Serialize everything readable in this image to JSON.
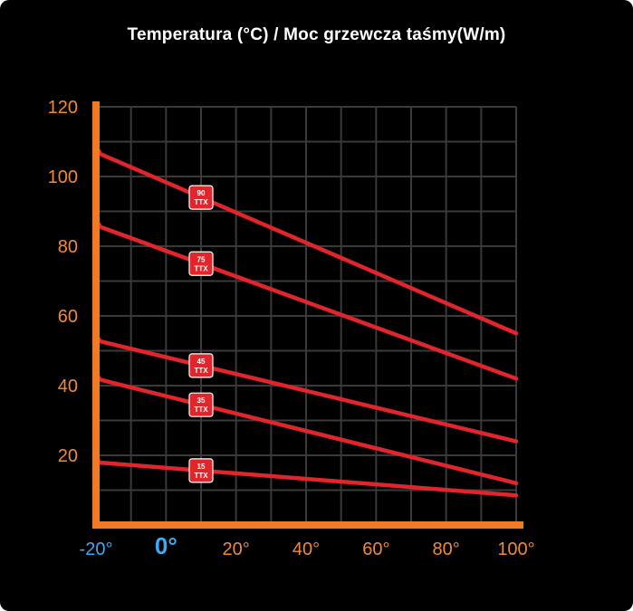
{
  "chart_data": {
    "type": "line",
    "title": "Temperatura (°C) / Moc grzewcza taśmy(W/m)",
    "xlabel": "",
    "ylabel": "",
    "xlim": [
      -20,
      100
    ],
    "ylim": [
      0,
      120
    ],
    "grid": true,
    "x_ticks": [
      {
        "value": -20,
        "label": "-20°",
        "color": "#3fa9f5",
        "emphasis": false
      },
      {
        "value": 0,
        "label": "0°",
        "color": "#3fa9f5",
        "emphasis": true
      },
      {
        "value": 20,
        "label": "20°",
        "color": "#f08a38",
        "emphasis": false
      },
      {
        "value": 40,
        "label": "40°",
        "color": "#f08a38",
        "emphasis": false
      },
      {
        "value": 60,
        "label": "60°",
        "color": "#f08a38",
        "emphasis": false
      },
      {
        "value": 80,
        "label": "80°",
        "color": "#f08a38",
        "emphasis": false
      },
      {
        "value": 100,
        "label": "100°",
        "color": "#f08a38",
        "emphasis": false
      }
    ],
    "y_ticks": [
      {
        "value": 20,
        "label": "20"
      },
      {
        "value": 40,
        "label": "40"
      },
      {
        "value": 60,
        "label": "60"
      },
      {
        "value": 80,
        "label": "80"
      },
      {
        "value": 100,
        "label": "100"
      },
      {
        "value": 120,
        "label": "120"
      }
    ],
    "series": [
      {
        "name": "90 TTX",
        "tag_top": "90",
        "tag_bottom": "TTX",
        "x": [
          -20,
          100
        ],
        "values": [
          107,
          55
        ],
        "tag_x": 10
      },
      {
        "name": "75 TTX",
        "tag_top": "75",
        "tag_bottom": "TTX",
        "x": [
          -20,
          100
        ],
        "values": [
          86,
          42
        ],
        "tag_x": 10
      },
      {
        "name": "45 TTX",
        "tag_top": "45",
        "tag_bottom": "TTX",
        "x": [
          -20,
          100
        ],
        "values": [
          53,
          24
        ],
        "tag_x": 10
      },
      {
        "name": "35 TTX",
        "tag_top": "35",
        "tag_bottom": "TTX",
        "x": [
          -20,
          100
        ],
        "values": [
          42,
          12
        ],
        "tag_x": 10
      },
      {
        "name": "15 TTX",
        "tag_top": "15",
        "tag_bottom": "TTX",
        "x": [
          -20,
          100
        ],
        "values": [
          18,
          8.5
        ],
        "tag_x": 10
      }
    ],
    "colors": {
      "background": "#000000",
      "grid": "#3a3a3a",
      "axis": "#f07a26",
      "series": "#e0262b",
      "tag": "#e0262b",
      "y_tick_labels": "#f08a38",
      "title": "#ffffff"
    }
  }
}
